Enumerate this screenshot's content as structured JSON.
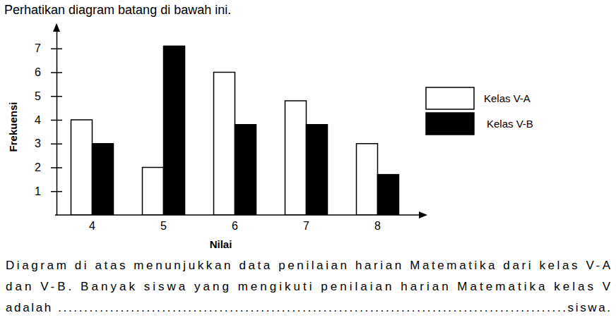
{
  "chart_data": {
    "type": "bar",
    "title": "Perhatikan diagram batang di bawah ini.",
    "x_label": "Nilai",
    "y_label": "Frekuensi",
    "categories": [
      "4",
      "5",
      "6",
      "7",
      "8"
    ],
    "series": [
      {
        "name": "Kelas V-A",
        "color": "#ffffff",
        "values": [
          4,
          2,
          6,
          4.8,
          3
        ]
      },
      {
        "name": "Kelas V-B",
        "color": "#000000",
        "values": [
          3,
          7.1,
          3.8,
          3.8,
          1.7
        ]
      }
    ],
    "ylim": [
      0,
      8
    ],
    "yticks": [
      1,
      2,
      3,
      4,
      5,
      6,
      7
    ],
    "grid": false,
    "legend": "right",
    "annotations": [
      "Diagram di atas menunjukkan data penilaian harian Matematika dari kelas V-A",
      "dan V-B. Banyak siswa yang mengikuti penilaian harian Matematika kelas V",
      "adalah ..................................................................................................siswa."
    ]
  }
}
